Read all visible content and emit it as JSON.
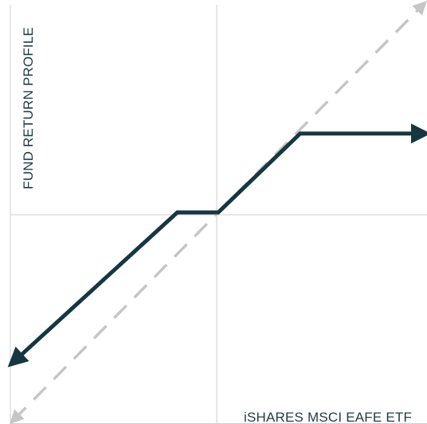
{
  "chart_data": {
    "type": "line",
    "xlabel": "iSHARES MSCI EAFE ETF",
    "ylabel": "FUND RETURN PROFILE",
    "xlim": [
      -5,
      5
    ],
    "ylim": [
      -5,
      5
    ],
    "grid": false,
    "reference_line": {
      "style": "dashed",
      "color": "#c6c6c6",
      "x": [
        -5,
        5
      ],
      "y": [
        -5,
        5
      ]
    },
    "series": [
      {
        "color": "#163740",
        "x": [
          -5,
          -1,
          0,
          2,
          5
        ],
        "y": [
          -3.6,
          0,
          0,
          1.9,
          1.9
        ]
      }
    ]
  }
}
